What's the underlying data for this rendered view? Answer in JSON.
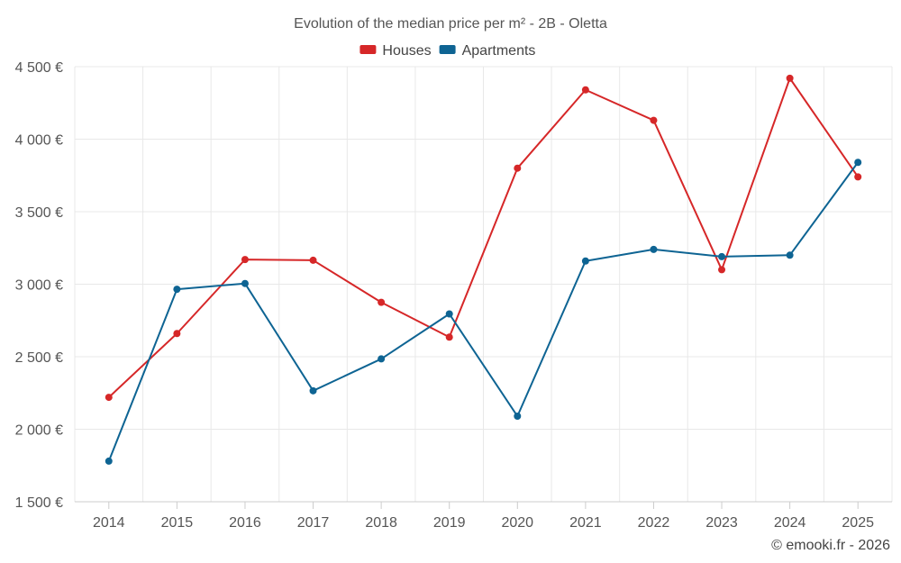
{
  "chart_data": {
    "type": "line",
    "title": "Evolution of the median price per m² - 2B - Oletta",
    "categories": [
      "2014",
      "2015",
      "2016",
      "2017",
      "2018",
      "2019",
      "2020",
      "2021",
      "2022",
      "2023",
      "2024",
      "2025"
    ],
    "series": [
      {
        "name": "Houses",
        "color": "#d62728",
        "values": [
          2220,
          2660,
          3170,
          3165,
          2875,
          2635,
          3800,
          4340,
          4130,
          3100,
          4420,
          3740
        ]
      },
      {
        "name": "Apartments",
        "color": "#0e6493",
        "values": [
          1780,
          2965,
          3005,
          2265,
          2485,
          2795,
          2090,
          3160,
          3240,
          3190,
          3200,
          3840
        ]
      }
    ],
    "ylim": [
      1500,
      4500
    ],
    "y_ticks": [
      1500,
      2000,
      2500,
      3000,
      3500,
      4000,
      4500
    ],
    "y_tick_labels": [
      "1 500 €",
      "2 000 €",
      "2 500 €",
      "3 000 €",
      "3 500 €",
      "4 000 €",
      "4 500 €"
    ],
    "legend_position": "top-center",
    "grid": true
  },
  "credit": "© emooki.fr - 2026"
}
